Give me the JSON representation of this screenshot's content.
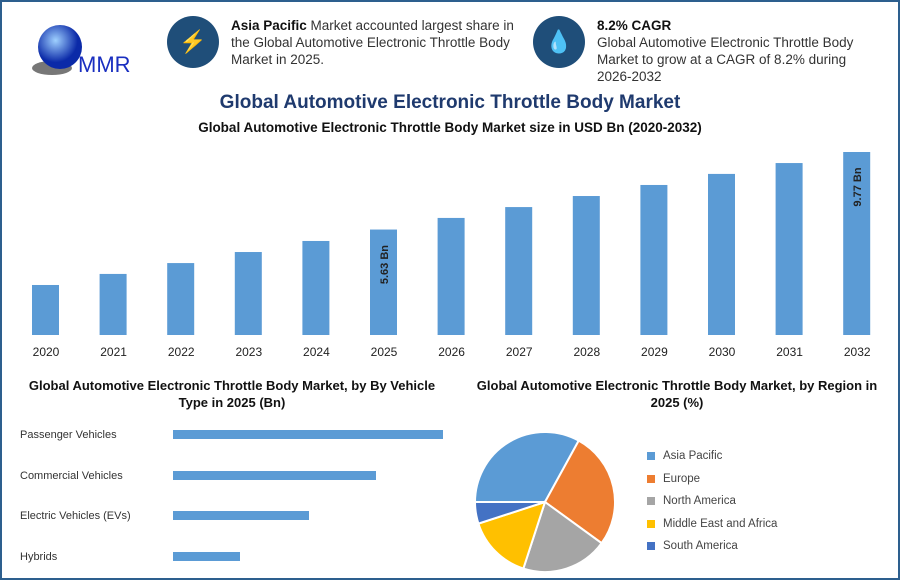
{
  "header": {
    "logo_text": "MMR",
    "highlight1": {
      "icon": "lightning-icon",
      "bold": "Asia Pacific",
      "text": " Market accounted largest share in the Global Automotive Electronic Throttle Body Market in 2025."
    },
    "highlight2": {
      "icon": "flame-drop-icon",
      "bold": "8.2% CAGR",
      "text": "Global Automotive Electronic Throttle Body Market to grow at a CAGR of 8.2% during 2026-2032"
    }
  },
  "title": "Global Automotive Electronic Throttle Body Market",
  "colors": {
    "bar": "#5b9bd5",
    "accent": "#1f4e79",
    "border": "#2d5f8e"
  },
  "chart_data": [
    {
      "type": "bar",
      "title": "Global Automotive Electronic Throttle Body Market size in USD Bn (2020-2032)",
      "categories": [
        "2020",
        "2021",
        "2022",
        "2023",
        "2024",
        "2025",
        "2026",
        "2027",
        "2028",
        "2029",
        "2030",
        "2031",
        "2032"
      ],
      "values": [
        2.67,
        3.26,
        3.84,
        4.43,
        5.02,
        5.63,
        6.25,
        6.83,
        7.42,
        8.01,
        8.6,
        9.18,
        9.77
      ],
      "data_labels": {
        "2025": "5.63 Bn",
        "2032": "9.77 Bn"
      },
      "ylim": [
        0,
        9.77
      ],
      "grid": false
    },
    {
      "type": "bar",
      "orientation": "horizontal",
      "title": "Global Automotive Electronic Throttle Body Market, by By Vehicle Type in 2025 (Bn)",
      "categories": [
        "Passenger Vehicles",
        "Commercial Vehicles",
        "Electric Vehicles (EVs)",
        "Hybrids"
      ],
      "values": [
        2.25,
        1.69,
        1.13,
        0.56
      ],
      "grid": false
    },
    {
      "type": "pie",
      "title": "Global Automotive Electronic Throttle Body Market, by Region in 2025 (%)",
      "categories": [
        "Asia Pacific",
        "Europe",
        "North America",
        "Middle East and Africa",
        "South America"
      ],
      "values": [
        33,
        27,
        20,
        15,
        5
      ],
      "colors": [
        "#5b9bd5",
        "#ed7d31",
        "#a5a5a5",
        "#ffc000",
        "#4472c4"
      ],
      "legend": "right"
    }
  ]
}
